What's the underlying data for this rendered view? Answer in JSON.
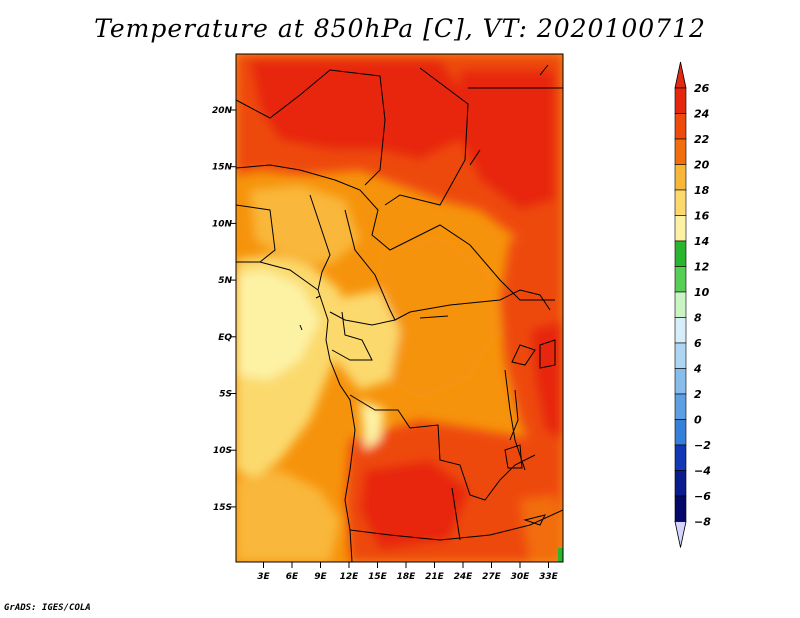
{
  "title": "Temperature at 850hPa [C], VT: 2020100712",
  "credit": "GrADS: IGES/COLA",
  "map": {
    "lat_ticks": [
      "20N",
      "15N",
      "10N",
      "5N",
      "EQ",
      "5S",
      "10S",
      "15S"
    ],
    "lon_ticks": [
      "3E",
      "6E",
      "9E",
      "12E",
      "15E",
      "18E",
      "21E",
      "24E",
      "27E",
      "30E",
      "33E"
    ]
  },
  "colorbar": {
    "labels": [
      "26",
      "24",
      "22",
      "20",
      "18",
      "16",
      "14",
      "12",
      "10",
      "8",
      "6",
      "4",
      "2",
      "0",
      "−2",
      "−4",
      "−6",
      "−8"
    ],
    "colors": [
      "#e7260e",
      "#ee4a0c",
      "#f26d0b",
      "#f6930c",
      "#f9b73a",
      "#fbd96d",
      "#fdf2a4",
      "#2ab52e",
      "#55cf55",
      "#8fe88a",
      "#c9f5c2",
      "#d6eefa",
      "#aed6f3",
      "#86bdec",
      "#5c9fe2",
      "#3780d9",
      "#1d5ed0",
      "#1238b5",
      "#0a1c8e",
      "#04086b"
    ],
    "top_cap": "#e02a12",
    "bottom_cap": "#d4d4ff"
  }
}
